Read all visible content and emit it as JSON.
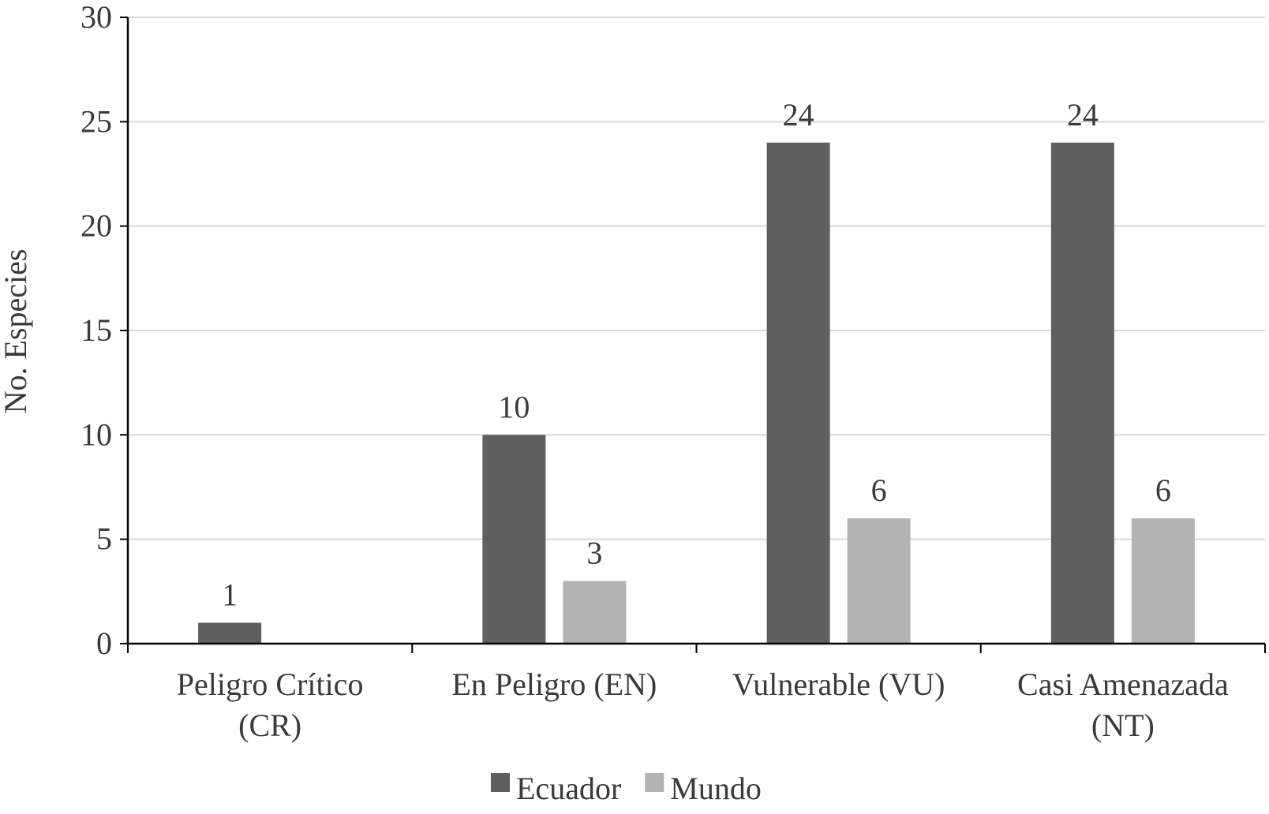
{
  "chart_data": {
    "type": "bar",
    "title": "",
    "xlabel": "",
    "ylabel": "No. Especies",
    "ylim": [
      0,
      30
    ],
    "ytick_step": 5,
    "grid": true,
    "legend_position": "bottom",
    "categories": [
      [
        "Peligro Crítico",
        "(CR)"
      ],
      [
        "En Peligro (EN)"
      ],
      [
        "Vulnerable (VU)"
      ],
      [
        "Casi Amenazada",
        "(NT)"
      ]
    ],
    "series": [
      {
        "name": "Ecuador",
        "color": "#5f5f5f",
        "values": [
          1,
          10,
          24,
          24
        ]
      },
      {
        "name": "Mundo",
        "color": "#b3b3b3",
        "values": [
          null,
          3,
          6,
          6
        ]
      }
    ]
  }
}
